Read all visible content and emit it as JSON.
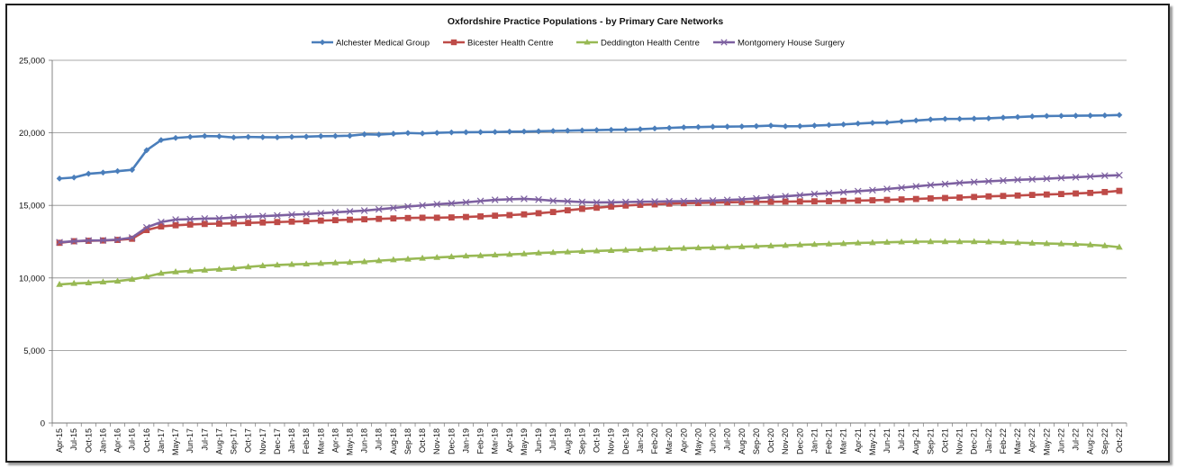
{
  "chart_data": {
    "type": "line",
    "title": "Oxfordshire Practice Populations - by  Primary  Care  Networks",
    "xlabel": "",
    "ylabel": "",
    "ylim": [
      0,
      25000
    ],
    "yticks": [
      0,
      5000,
      10000,
      15000,
      20000,
      25000
    ],
    "ytick_labels": [
      "0",
      "5,000",
      "10,000",
      "15,000",
      "20,000",
      "25,000"
    ],
    "grid": true,
    "legend_position": "top",
    "categories": [
      "Apr-15",
      "Jul-15",
      "Oct-15",
      "Jan-16",
      "Apr-16",
      "Jul-16",
      "Oct-16",
      "Jan-17",
      "May-17",
      "Jun-17",
      "Jul-17",
      "Aug-17",
      "Sep-17",
      "Oct-17",
      "Nov-17",
      "Dec-17",
      "Jan-18",
      "Feb-18",
      "Mar-18",
      "Apr-18",
      "May-18",
      "Jun-18",
      "Jul-18",
      "Aug-18",
      "Sep-18",
      "Oct-18",
      "Nov-18",
      "Dec-18",
      "Jan-19",
      "Feb-19",
      "Mar-19",
      "Apr-19",
      "May-19",
      "Jun-19",
      "Jul-19",
      "Aug-19",
      "Sep-19",
      "Oct-19",
      "Nov-19",
      "Dec-19",
      "Jan-20",
      "Feb-20",
      "Mar-20",
      "Apr-20",
      "May-20",
      "Jun-20",
      "Jul-20",
      "Aug-20",
      "Sep-20",
      "Oct-20",
      "Nov-20",
      "Dec-20",
      "Jan-21",
      "Feb-21",
      "Mar-21",
      "Apr-21",
      "May-21",
      "Jun-21",
      "Jul-21",
      "Aug-21",
      "Sep-21",
      "Oct-21",
      "Nov-21",
      "Dec-21",
      "Jan-22",
      "Feb-22",
      "Mar-22",
      "Apr-22",
      "May-22",
      "Jun-22",
      "Jul-22",
      "Aug-22",
      "Sep-22",
      "Oct-22"
    ],
    "series": [
      {
        "name": "Alchester Medical Group",
        "color": "#4a7ebb",
        "marker": "diamond",
        "values": [
          16850,
          16920,
          17180,
          17260,
          17360,
          17450,
          18800,
          19500,
          19650,
          19720,
          19780,
          19760,
          19680,
          19720,
          19700,
          19690,
          19720,
          19740,
          19770,
          19780,
          19800,
          19900,
          19880,
          19940,
          19990,
          19960,
          20000,
          20030,
          20040,
          20050,
          20060,
          20080,
          20090,
          20110,
          20130,
          20150,
          20170,
          20190,
          20210,
          20220,
          20250,
          20300,
          20340,
          20380,
          20400,
          20420,
          20430,
          20440,
          20460,
          20500,
          20450,
          20460,
          20500,
          20540,
          20580,
          20640,
          20690,
          20710,
          20790,
          20850,
          20920,
          20960,
          20960,
          20980,
          21000,
          21050,
          21090,
          21130,
          21160,
          21170,
          21180,
          21190,
          21200,
          21230
        ]
      },
      {
        "name": "Bicester Health Centre",
        "color": "#be4b48",
        "marker": "square",
        "values": [
          12420,
          12530,
          12560,
          12580,
          12620,
          12700,
          13300,
          13550,
          13630,
          13680,
          13720,
          13740,
          13760,
          13790,
          13820,
          13850,
          13880,
          13910,
          13950,
          13980,
          14010,
          14040,
          14070,
          14100,
          14130,
          14150,
          14150,
          14170,
          14200,
          14240,
          14290,
          14330,
          14380,
          14460,
          14540,
          14660,
          14760,
          14840,
          14920,
          14990,
          15040,
          15070,
          15120,
          15150,
          15160,
          15190,
          15210,
          15230,
          15240,
          15250,
          15260,
          15270,
          15280,
          15290,
          15310,
          15330,
          15350,
          15380,
          15410,
          15440,
          15480,
          15510,
          15540,
          15580,
          15620,
          15650,
          15680,
          15720,
          15750,
          15780,
          15820,
          15860,
          15920,
          16000
        ]
      },
      {
        "name": "Deddington Health Centre",
        "color": "#98b954",
        "marker": "triangle",
        "values": [
          9550,
          9620,
          9660,
          9720,
          9780,
          9900,
          10080,
          10320,
          10420,
          10480,
          10540,
          10600,
          10660,
          10760,
          10840,
          10890,
          10930,
          10960,
          11000,
          11040,
          11070,
          11120,
          11190,
          11250,
          11300,
          11360,
          11410,
          11460,
          11510,
          11540,
          11580,
          11620,
          11660,
          11720,
          11750,
          11790,
          11830,
          11860,
          11890,
          11920,
          11950,
          11990,
          12020,
          12040,
          12070,
          12090,
          12120,
          12150,
          12180,
          12210,
          12240,
          12280,
          12310,
          12340,
          12370,
          12410,
          12430,
          12460,
          12480,
          12500,
          12500,
          12500,
          12500,
          12500,
          12480,
          12460,
          12430,
          12400,
          12370,
          12350,
          12320,
          12280,
          12220,
          12120
        ]
      },
      {
        "name": "Montgomery House Surgery",
        "color": "#7d60a0",
        "marker": "x",
        "values": [
          12460,
          12530,
          12580,
          12590,
          12640,
          12780,
          13480,
          13850,
          14020,
          14050,
          14090,
          14100,
          14170,
          14220,
          14260,
          14300,
          14360,
          14400,
          14460,
          14520,
          14580,
          14640,
          14730,
          14820,
          14920,
          15000,
          15080,
          15140,
          15210,
          15300,
          15380,
          15420,
          15450,
          15400,
          15320,
          15280,
          15230,
          15200,
          15210,
          15230,
          15250,
          15260,
          15280,
          15290,
          15310,
          15330,
          15370,
          15410,
          15480,
          15560,
          15630,
          15700,
          15780,
          15840,
          15910,
          15980,
          16050,
          16130,
          16220,
          16310,
          16400,
          16470,
          16550,
          16610,
          16660,
          16710,
          16760,
          16800,
          16840,
          16890,
          16940,
          16990,
          17050,
          17080
        ]
      }
    ]
  }
}
